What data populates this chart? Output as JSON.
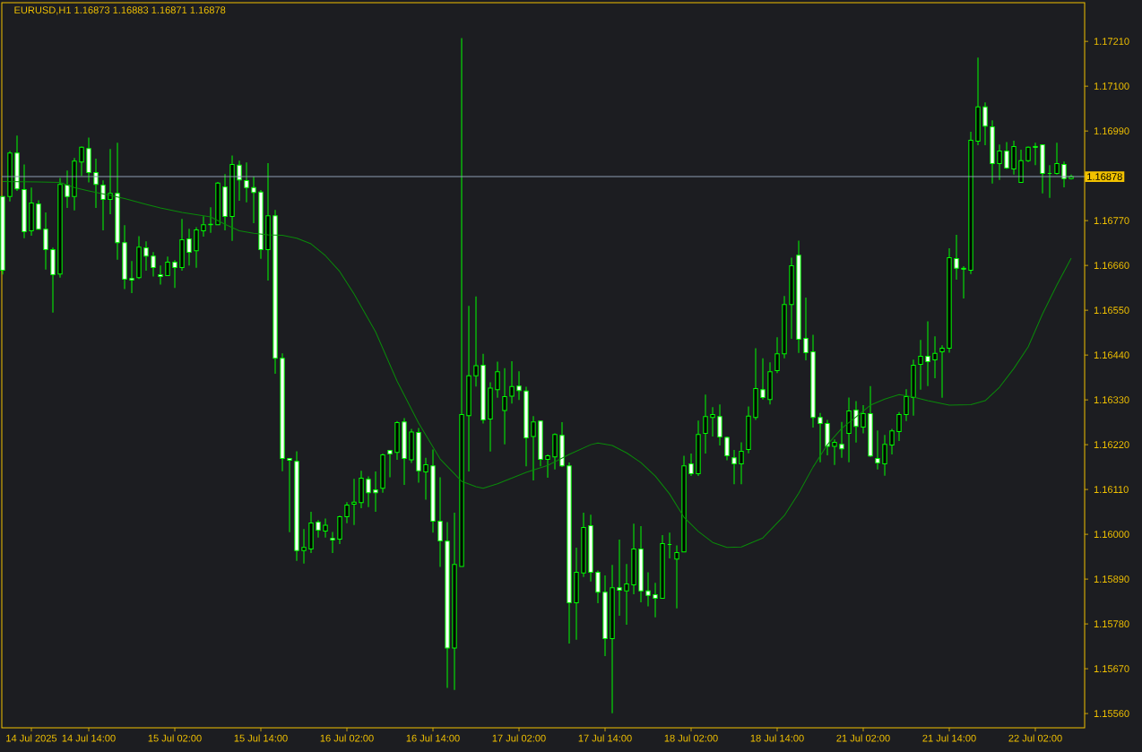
{
  "chart_data": {
    "type": "candlestick",
    "title": "EURUSD,H1 1.16873 1.16883 1.16871 1.16878",
    "categories": [
      null,
      null,
      null,
      null,
      "14 Jul 2025",
      null,
      null,
      null,
      null,
      null,
      null,
      null,
      "14 Jul 14:00",
      null,
      null,
      null,
      null,
      null,
      null,
      null,
      null,
      null,
      null,
      null,
      "15 Jul 02:00",
      null,
      null,
      null,
      null,
      null,
      null,
      null,
      null,
      null,
      null,
      null,
      "15 Jul 14:00",
      null,
      null,
      null,
      null,
      null,
      null,
      null,
      null,
      null,
      null,
      null,
      "16 Jul 02:00",
      null,
      null,
      null,
      null,
      null,
      null,
      null,
      null,
      null,
      null,
      null,
      "16 Jul 14:00",
      null,
      null,
      null,
      null,
      null,
      null,
      null,
      null,
      null,
      null,
      null,
      "17 Jul 02:00",
      null,
      null,
      null,
      null,
      null,
      null,
      null,
      null,
      null,
      null,
      null,
      "17 Jul 14:00",
      null,
      null,
      null,
      null,
      null,
      null,
      null,
      null,
      null,
      null,
      null,
      "18 Jul 02:00",
      null,
      null,
      null,
      null,
      null,
      null,
      null,
      null,
      null,
      null,
      null,
      "18 Jul 14:00",
      null,
      null,
      null,
      null,
      null,
      null,
      null,
      null,
      null,
      null,
      null,
      "21 Jul 02:00",
      null,
      null,
      null,
      null,
      null,
      null,
      null,
      null,
      null,
      null,
      null,
      "21 Jul 14:00",
      null,
      null,
      null,
      null,
      null,
      null,
      null,
      null,
      null,
      null,
      null,
      "22 Jul 02:00",
      null,
      null,
      null,
      null,
      null
    ],
    "ohlc": [
      [
        1.16829,
        1.16829,
        1.16638,
        1.16648
      ],
      [
        1.16829,
        1.16941,
        1.16817,
        1.16936
      ],
      [
        1.16936,
        1.16979,
        1.16843,
        1.16848
      ],
      [
        1.16846,
        1.16908,
        1.16727,
        1.16743
      ],
      [
        1.16745,
        1.16851,
        1.16733,
        1.16813
      ],
      [
        1.16811,
        1.1682,
        1.16749,
        1.16749
      ],
      [
        1.16749,
        1.1679,
        1.1665,
        1.16699
      ],
      [
        1.16699,
        1.16704,
        1.16544,
        1.16637
      ],
      [
        1.16639,
        1.16875,
        1.1663,
        1.16859
      ],
      [
        1.16857,
        1.16893,
        1.16801,
        1.16829
      ],
      [
        1.16829,
        1.16924,
        1.16795,
        1.16916
      ],
      [
        1.16914,
        1.16952,
        1.1688,
        1.1695
      ],
      [
        1.16947,
        1.16974,
        1.16864,
        1.16888
      ],
      [
        1.16888,
        1.16922,
        1.16801,
        1.16859
      ],
      [
        1.16857,
        1.16869,
        1.16746,
        1.16822
      ],
      [
        1.16822,
        1.16946,
        1.16786,
        1.16837
      ],
      [
        1.16837,
        1.16961,
        1.16674,
        1.16716
      ],
      [
        1.16716,
        1.16759,
        1.16602,
        1.16626
      ],
      [
        1.16628,
        1.16671,
        1.16592,
        1.16624
      ],
      [
        1.1663,
        1.16732,
        1.16627,
        1.16705
      ],
      [
        1.16703,
        1.16719,
        1.16647,
        1.16683
      ],
      [
        1.16683,
        1.16693,
        1.16633,
        1.16655
      ],
      [
        1.16637,
        1.1666,
        1.16613,
        1.16633
      ],
      [
        1.16635,
        1.16682,
        1.16635,
        1.16668
      ],
      [
        1.16668,
        1.16673,
        1.16605,
        1.16655
      ],
      [
        1.16655,
        1.16774,
        1.16647,
        1.16723
      ],
      [
        1.16725,
        1.1675,
        1.1666,
        1.16692
      ],
      [
        1.16696,
        1.16754,
        1.16654,
        1.16747
      ],
      [
        1.16745,
        1.16781,
        1.16731,
        1.1676
      ],
      [
        1.1676,
        1.16803,
        1.1674,
        1.16761
      ],
      [
        1.1676,
        1.16865,
        1.1676,
        1.16862
      ],
      [
        1.16853,
        1.16884,
        1.16746,
        1.1678
      ],
      [
        1.1678,
        1.1693,
        1.1672,
        1.16908
      ],
      [
        1.16906,
        1.16917,
        1.16819,
        1.1687
      ],
      [
        1.16868,
        1.16913,
        1.16815,
        1.16851
      ],
      [
        1.16851,
        1.16878,
        1.16764,
        1.16839
      ],
      [
        1.1684,
        1.16845,
        1.16676,
        1.16699
      ],
      [
        1.16699,
        1.16911,
        1.16623,
        1.16782
      ],
      [
        1.16782,
        1.16796,
        1.16394,
        1.16432
      ],
      [
        1.16432,
        1.16444,
        1.16155,
        1.16186
      ],
      [
        1.16186,
        1.16186,
        1.16005,
        1.16182
      ],
      [
        1.16179,
        1.16204,
        1.15935,
        1.1596
      ],
      [
        1.1596,
        1.16013,
        1.15928,
        1.15968
      ],
      [
        1.15964,
        1.16055,
        1.15954,
        1.16028
      ],
      [
        1.1603,
        1.16035,
        1.15992,
        1.1601
      ],
      [
        1.16008,
        1.16039,
        1.15992,
        1.16022
      ],
      [
        1.1599,
        1.16006,
        1.15954,
        1.15986
      ],
      [
        1.15988,
        1.16046,
        1.15976,
        1.16043
      ],
      [
        1.16043,
        1.16079,
        1.16027,
        1.16072
      ],
      [
        1.16074,
        1.16136,
        1.16023,
        1.16079
      ],
      [
        1.16078,
        1.16156,
        1.16064,
        1.16138
      ],
      [
        1.16135,
        1.16142,
        1.16067,
        1.16102
      ],
      [
        1.16109,
        1.16154,
        1.16055,
        1.16102
      ],
      [
        1.16113,
        1.16198,
        1.16102,
        1.16195
      ],
      [
        1.16206,
        1.16207,
        1.1614,
        1.16197
      ],
      [
        1.16201,
        1.16278,
        1.16183,
        1.16274
      ],
      [
        1.16276,
        1.16285,
        1.16121,
        1.16186
      ],
      [
        1.16183,
        1.16259,
        1.16175,
        1.16251
      ],
      [
        1.1625,
        1.16261,
        1.16127,
        1.16156
      ],
      [
        1.16153,
        1.16188,
        1.16085,
        1.16171
      ],
      [
        1.16168,
        1.16208,
        1.16004,
        1.16032
      ],
      [
        1.16032,
        1.1614,
        1.1592,
        1.15984
      ],
      [
        1.15983,
        1.1603,
        1.15623,
        1.15721
      ],
      [
        1.15721,
        1.16053,
        1.15618,
        1.15926
      ],
      [
        1.15921,
        1.17218,
        1.15921,
        1.16294
      ],
      [
        1.16291,
        1.16561,
        1.16154,
        1.16389
      ],
      [
        1.16389,
        1.16584,
        1.16363,
        1.16414
      ],
      [
        1.16415,
        1.16443,
        1.16272,
        1.16281
      ],
      [
        1.16283,
        1.16373,
        1.16203,
        1.16359
      ],
      [
        1.16355,
        1.16424,
        1.16335,
        1.16399
      ],
      [
        1.16304,
        1.16408,
        1.16221,
        1.16338
      ],
      [
        1.16339,
        1.16425,
        1.16321,
        1.16363
      ],
      [
        1.16364,
        1.164,
        1.1633,
        1.16353
      ],
      [
        1.16352,
        1.16362,
        1.16167,
        1.16237
      ],
      [
        1.1624,
        1.1629,
        1.16132,
        1.16276
      ],
      [
        1.16278,
        1.16278,
        1.16167,
        1.16184
      ],
      [
        1.16184,
        1.16196,
        1.16139,
        1.16193
      ],
      [
        1.1619,
        1.16248,
        1.16159,
        1.16245
      ],
      [
        1.16243,
        1.16275,
        1.16165,
        1.16168
      ],
      [
        1.16168,
        1.16176,
        1.15732,
        1.15832
      ],
      [
        1.15832,
        1.15967,
        1.15741,
        1.15907
      ],
      [
        1.15905,
        1.16053,
        1.15895,
        1.16017
      ],
      [
        1.16021,
        1.16048,
        1.15884,
        1.15907
      ],
      [
        1.15907,
        1.15911,
        1.15831,
        1.15858
      ],
      [
        1.15858,
        1.15899,
        1.15701,
        1.15744
      ],
      [
        1.15744,
        1.15925,
        1.15561,
        1.15869
      ],
      [
        1.15869,
        1.15987,
        1.158,
        1.15863
      ],
      [
        1.15861,
        1.15927,
        1.15778,
        1.15878
      ],
      [
        1.15876,
        1.16026,
        1.15853,
        1.15964
      ],
      [
        1.15964,
        1.1602,
        1.15833,
        1.15861
      ],
      [
        1.15861,
        1.15907,
        1.15823,
        1.1585
      ],
      [
        1.15852,
        1.15881,
        1.15796,
        1.15843
      ],
      [
        1.15843,
        1.15998,
        1.15843,
        1.15977
      ],
      [
        1.15975,
        1.16004,
        1.15941,
        1.15975
      ],
      [
        1.15939,
        1.15973,
        1.15818,
        1.15955
      ],
      [
        1.15957,
        1.16193,
        1.15957,
        1.16168
      ],
      [
        1.16173,
        1.16198,
        1.16143,
        1.16149
      ],
      [
        1.16149,
        1.16279,
        1.16143,
        1.16245
      ],
      [
        1.16248,
        1.16343,
        1.16198,
        1.16289
      ],
      [
        1.16287,
        1.16312,
        1.1624,
        1.16294
      ],
      [
        1.16289,
        1.16319,
        1.16218,
        1.16239
      ],
      [
        1.16238,
        1.1624,
        1.16182,
        1.16193
      ],
      [
        1.16188,
        1.16207,
        1.16123,
        1.16173
      ],
      [
        1.16173,
        1.16226,
        1.16123,
        1.16204
      ],
      [
        1.16208,
        1.16314,
        1.16199,
        1.1629
      ],
      [
        1.16287,
        1.16457,
        1.16281,
        1.16358
      ],
      [
        1.16355,
        1.16432,
        1.16331,
        1.16336
      ],
      [
        1.16331,
        1.16422,
        1.16319,
        1.16399
      ],
      [
        1.16402,
        1.16484,
        1.16396,
        1.16443
      ],
      [
        1.16443,
        1.16585,
        1.16432,
        1.16564
      ],
      [
        1.16564,
        1.16679,
        1.1648,
        1.16659
      ],
      [
        1.16685,
        1.16721,
        1.16445,
        1.16479
      ],
      [
        1.16481,
        1.16581,
        1.16427,
        1.16446
      ],
      [
        1.16448,
        1.1649,
        1.16262,
        1.16287
      ],
      [
        1.16287,
        1.16298,
        1.16177,
        1.16272
      ],
      [
        1.16272,
        1.16281,
        1.16194,
        1.16216
      ],
      [
        1.16216,
        1.16233,
        1.1617,
        1.16226
      ],
      [
        1.16221,
        1.16276,
        1.16188,
        1.1621
      ],
      [
        1.16248,
        1.16336,
        1.16177,
        1.16303
      ],
      [
        1.16305,
        1.16327,
        1.16225,
        1.16265
      ],
      [
        1.16263,
        1.16317,
        1.16248,
        1.16296
      ],
      [
        1.16296,
        1.16364,
        1.1619,
        1.16192
      ],
      [
        1.16186,
        1.16255,
        1.16159,
        1.16175
      ],
      [
        1.16173,
        1.16244,
        1.16144,
        1.16221
      ],
      [
        1.16219,
        1.16259,
        1.16196,
        1.16254
      ],
      [
        1.16252,
        1.163,
        1.16229,
        1.16294
      ],
      [
        1.16294,
        1.16356,
        1.16278,
        1.16338
      ],
      [
        1.16336,
        1.16429,
        1.16291,
        1.16415
      ],
      [
        1.16417,
        1.16477,
        1.16355,
        1.16437
      ],
      [
        1.16437,
        1.16523,
        1.16364,
        1.16424
      ],
      [
        1.16428,
        1.16486,
        1.16383,
        1.16444
      ],
      [
        1.16448,
        1.16464,
        1.16335,
        1.16457
      ],
      [
        1.16457,
        1.16702,
        1.16446,
        1.16679
      ],
      [
        1.16677,
        1.16735,
        1.16625,
        1.16653
      ],
      [
        1.16653,
        1.16658,
        1.16579,
        1.16651
      ],
      [
        1.16648,
        1.16988,
        1.16639,
        1.16967
      ],
      [
        1.16965,
        1.1717,
        1.16955,
        1.17049
      ],
      [
        1.17049,
        1.1706,
        1.16955,
        1.17002
      ],
      [
        1.17,
        1.17016,
        1.16861,
        1.1691
      ],
      [
        1.1691,
        1.16957,
        1.1687,
        1.16941
      ],
      [
        1.16941,
        1.16963,
        1.16897,
        1.16899
      ],
      [
        1.16897,
        1.16966,
        1.16883,
        1.16952
      ],
      [
        1.16864,
        1.16944,
        1.16864,
        1.16917
      ],
      [
        1.16917,
        1.16952,
        1.16914,
        1.1695
      ],
      [
        1.16952,
        1.16961,
        1.16906,
        1.1695
      ],
      [
        1.16956,
        1.16956,
        1.16837,
        1.16886
      ],
      [
        1.16886,
        1.16906,
        1.16826,
        1.16886
      ],
      [
        1.16886,
        1.16961,
        1.16883,
        1.1691
      ],
      [
        1.16908,
        1.16915,
        1.16852,
        1.16873
      ],
      [
        1.16873,
        1.16883,
        1.16871,
        1.16878
      ]
    ],
    "series": [
      {
        "type": "line",
        "color": "#0a8a0a",
        "values": [
          1.16866,
          null,
          null,
          null,
          null,
          1.16865,
          null,
          null,
          1.16864,
          null,
          1.16851,
          null,
          1.16843,
          null,
          null,
          1.16832,
          null,
          1.16824,
          null,
          null,
          1.1681,
          null,
          1.16801,
          null,
          null,
          1.1679,
          null,
          null,
          null,
          1.16779,
          null,
          1.16761,
          null,
          1.16745,
          null,
          1.16739,
          null,
          1.16735,
          null,
          1.16734,
          null,
          1.16727,
          null,
          1.16713,
          null,
          1.16684,
          null,
          1.16645,
          null,
          1.1659,
          null,
          null,
          1.16497,
          null,
          null,
          1.16376,
          null,
          null,
          1.16273,
          null,
          null,
          1.16185,
          null,
          null,
          1.1613,
          null,
          1.16117,
          1.16113,
          null,
          1.16124,
          null,
          null,
          null,
          1.16152,
          null,
          null,
          1.16169,
          null,
          null,
          1.16196,
          null,
          null,
          1.1622,
          1.16224,
          null,
          1.16218,
          null,
          1.162,
          null,
          1.16176,
          null,
          1.16143,
          null,
          1.16099,
          null,
          1.16042,
          null,
          1.16007,
          null,
          1.1598,
          null,
          1.15968,
          null,
          1.15969,
          null,
          null,
          1.15991,
          null,
          null,
          1.16046,
          null,
          1.16101,
          null,
          1.16165,
          null,
          1.1622,
          null,
          1.1626,
          null,
          1.16288,
          null,
          1.16317,
          null,
          1.16332,
          null,
          1.16343,
          null,
          1.16337,
          null,
          1.16328,
          null,
          null,
          1.16317,
          null,
          null,
          1.16318,
          null,
          1.16328,
          null,
          1.16361,
          null,
          1.16407,
          null,
          1.1646,
          null,
          1.16541,
          null,
          1.16612,
          null,
          1.16678
        ]
      }
    ],
    "ylim": [
      1.15525,
      1.17305
    ],
    "yticks": [
      {
        "value": 1.1556,
        "label": "1.15560"
      },
      {
        "value": 1.1567,
        "label": "1.15670"
      },
      {
        "value": 1.1578,
        "label": "1.15780"
      },
      {
        "value": 1.1589,
        "label": "1.15890"
      },
      {
        "value": 1.16,
        "label": "1.16000"
      },
      {
        "value": 1.1611,
        "label": "1.16110"
      },
      {
        "value": 1.1622,
        "label": "1.16220"
      },
      {
        "value": 1.1633,
        "label": "1.16330"
      },
      {
        "value": 1.1644,
        "label": "1.16440"
      },
      {
        "value": 1.1655,
        "label": "1.16550"
      },
      {
        "value": 1.1666,
        "label": "1.16660"
      },
      {
        "value": 1.1677,
        "label": "1.16770"
      },
      {
        "value": 1.1688,
        "label": null
      },
      {
        "value": 1.1699,
        "label": "1.16990"
      },
      {
        "value": 1.171,
        "label": "1.17100"
      },
      {
        "value": 1.1721,
        "label": "1.17210"
      }
    ],
    "ref_lines": [
      {
        "axis": "y",
        "value": 1.16878,
        "label": "1.16878",
        "color": "#8d9db3"
      }
    ]
  }
}
